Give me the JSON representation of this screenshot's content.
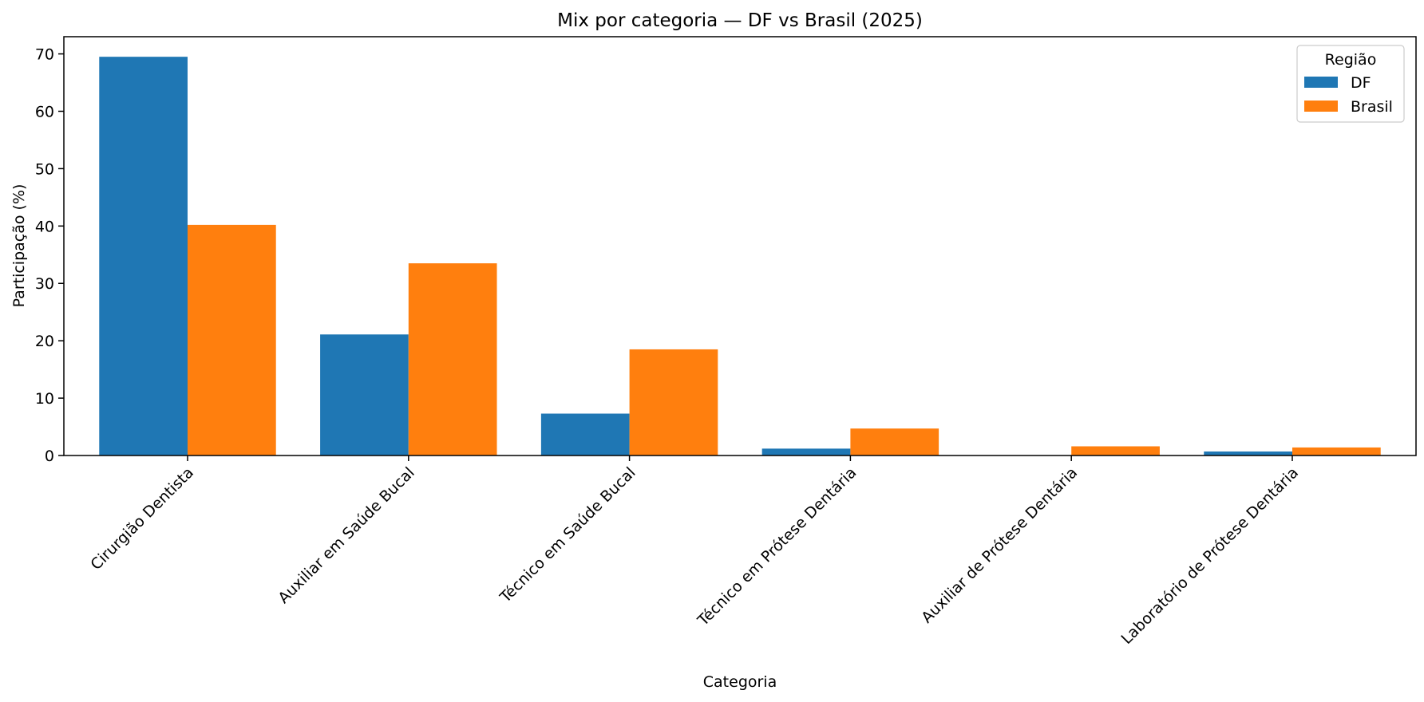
{
  "chart_data": {
    "type": "bar",
    "title": "Mix por categoria — DF vs Brasil (2025)",
    "xlabel": "Categoria",
    "ylabel": "Participação (%)",
    "ylim": [
      0,
      73
    ],
    "yticks": [
      0,
      10,
      20,
      30,
      40,
      50,
      60,
      70
    ],
    "categories": [
      "Cirurgião Dentista",
      "Auxiliar em Saúde Bucal",
      "Técnico em Saúde Bucal",
      "Técnico em Prótese Dentária",
      "Auxiliar de Prótese Dentária",
      "Laboratório de Prótese Dentária"
    ],
    "series": [
      {
        "name": "DF",
        "color": "#1f77b4",
        "values": [
          69.5,
          21.1,
          7.3,
          1.2,
          0.0,
          0.7
        ]
      },
      {
        "name": "Brasil",
        "color": "#ff7f0e",
        "values": [
          40.2,
          33.5,
          18.5,
          4.7,
          1.6,
          1.4
        ]
      }
    ],
    "legend": {
      "title": "Região",
      "placement": "top-right"
    },
    "grid": false
  }
}
